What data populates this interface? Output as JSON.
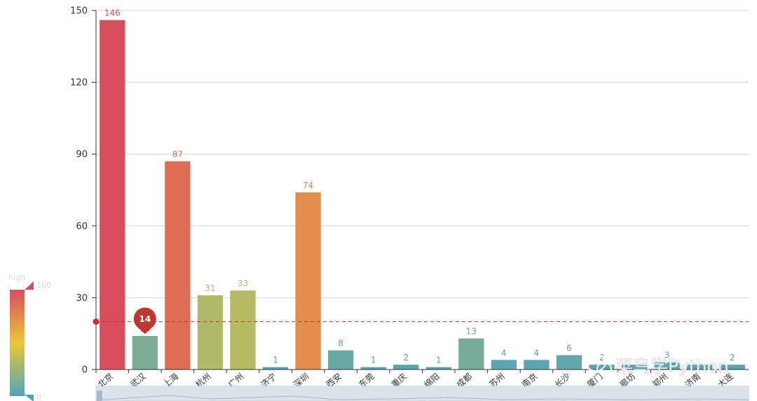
{
  "chart_data": {
    "type": "bar",
    "categories": [
      "北京",
      "武汉",
      "上海",
      "杭州",
      "广州",
      "济宁",
      "深圳",
      "西安",
      "东莞",
      "重庆",
      "绵阳",
      "成都",
      "苏州",
      "南京",
      "长沙",
      "厦门",
      "廊坊",
      "郑州",
      "济南",
      "大连"
    ],
    "values": [
      146,
      14,
      87,
      31,
      33,
      1,
      74,
      8,
      1,
      2,
      1,
      13,
      4,
      4,
      6,
      2,
      2,
      3,
      2,
      2
    ],
    "value_labels": [
      "146",
      "14",
      "87",
      "31",
      "33",
      "1",
      "74",
      "8",
      "1",
      "2",
      "1",
      "13",
      "4",
      "4",
      "6",
      "2",
      "",
      "3",
      "",
      "2"
    ],
    "yticks": [
      "0",
      "30",
      "60",
      "90",
      "120",
      "150"
    ],
    "ylim": [
      0,
      150
    ],
    "grid": true,
    "mark_point": {
      "category": "武汉",
      "value": 14,
      "label": "14"
    },
    "mark_line": {
      "value": 20,
      "color": "#c23531",
      "style": "dashed"
    },
    "visual_map": {
      "min": 0,
      "max": 100,
      "high_label": "high",
      "max_label": "100",
      "min_label": "0",
      "colors": [
        "#50a3ba",
        "#eac736",
        "#d94e5d"
      ]
    },
    "data_zoom": {
      "position": "bottom"
    }
  },
  "watermark": {
    "text": "菜鸟学Python"
  }
}
